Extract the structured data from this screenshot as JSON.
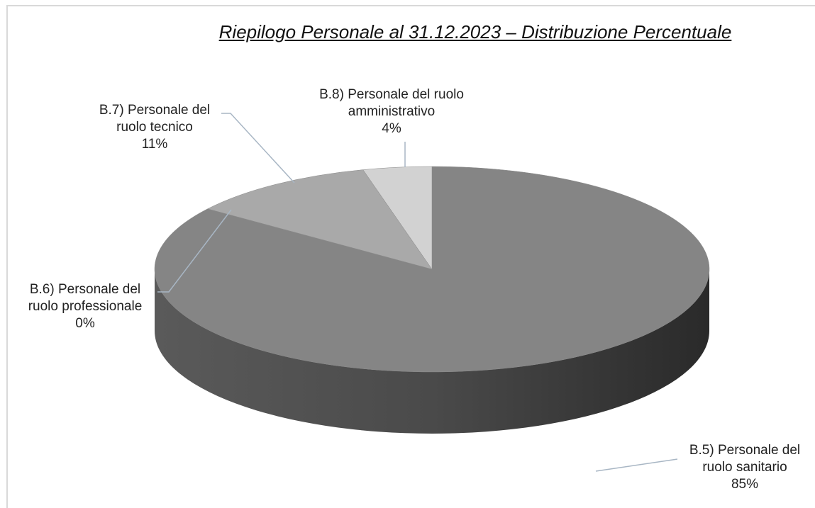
{
  "chart_data": {
    "type": "pie",
    "title": "Riepilogo Personale al 31.12.2023 – Distribuzione Percentuale",
    "categories": [
      "B.5) Personale del ruolo sanitario",
      "B.6) Personale del ruolo professionale",
      "B.7) Personale del ruolo tecnico",
      "B.8) Personale del ruolo amministrativo"
    ],
    "values": [
      85,
      0,
      11,
      4
    ],
    "value_labels": [
      "85%",
      "0%",
      "11%",
      "4%"
    ],
    "colors": [
      "#858585",
      "#9a9a9a",
      "#a9a9a9",
      "#d2d2d2"
    ]
  }
}
